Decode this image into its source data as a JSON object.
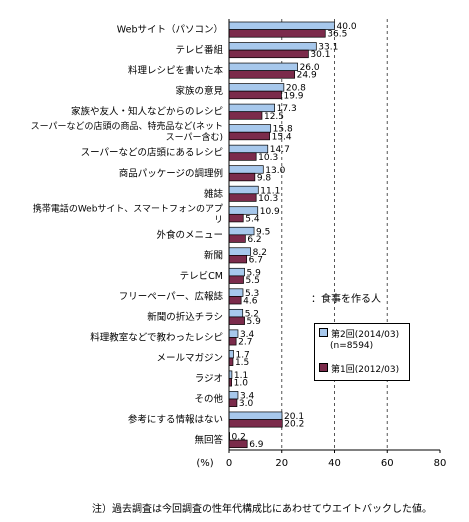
{
  "chart_data": {
    "type": "bar",
    "orientation": "horizontal",
    "categories": [
      "Webサイト（パソコン）",
      "テレビ番組",
      "料理レシピを書いた本",
      "家族の意見",
      "家族や友人・知人などからのレシピ",
      "スーパーなどの店頭の商品、特売品など(ネット スーパー含む)",
      "スーパーなどの店頭にあるレシピ",
      "商品パッケージの調理例",
      "雑誌",
      "携帯電話のWebサイト、スマートフォンのアプリ",
      "外食のメニュー",
      "新聞",
      "テレビCM",
      "フリーペーパー、広報誌",
      "新聞の折込チラシ",
      "料理教室などで教わったレシピ",
      "メールマガジン",
      "ラジオ",
      "その他",
      "参考にする情報はない",
      "無回答"
    ],
    "series": [
      {
        "name": "第2回(2014/03)",
        "sub": "(n=8594)",
        "color": "#a7c8ec",
        "values": [
          40.0,
          33.1,
          26.0,
          20.8,
          17.3,
          15.8,
          14.7,
          13.0,
          11.1,
          10.9,
          9.5,
          8.2,
          5.9,
          5.3,
          5.2,
          3.4,
          1.7,
          1.1,
          3.4,
          20.1,
          0.2
        ],
        "labels": [
          "40.0",
          "33.1",
          "26.0",
          "20.8",
          "17.3",
          "15.8",
          "14.7",
          "13.0",
          "11.1",
          "10.9",
          "9.5",
          "8.2",
          "5.9",
          "5.3",
          "5.2",
          "3.4",
          "1.7",
          "1.1",
          "3.4",
          "20.1",
          "0.2"
        ]
      },
      {
        "name": "第1回(2012/03)",
        "color": "#7b2b4b",
        "values": [
          36.5,
          30.1,
          24.9,
          19.9,
          12.5,
          15.4,
          10.3,
          9.8,
          10.3,
          5.4,
          6.2,
          6.7,
          5.5,
          4.6,
          5.9,
          2.7,
          1.5,
          1.0,
          3.0,
          20.2,
          6.9
        ],
        "labels": [
          "36.5",
          "30.1",
          "24.9",
          "19.9",
          "12.5",
          "15.4",
          "10.3",
          "9.8",
          "10.3",
          "5.4",
          "6.2",
          "6.7",
          "5.5",
          "4.6",
          "5.9",
          "2.7",
          "1.5",
          "1.0",
          "3.0",
          "20.2",
          "6.9"
        ]
      }
    ],
    "xlim": [
      0,
      80
    ],
    "xticks": [
      "0",
      "20",
      "40",
      "60",
      "80"
    ],
    "xunit": "(%)",
    "dashed_gridlines": [
      20,
      40,
      60
    ],
    "subtitle": "：食事を作る人",
    "note": "注）過去調査は今回調査の性年代構成比にあわせてウエイトバックした値。"
  }
}
